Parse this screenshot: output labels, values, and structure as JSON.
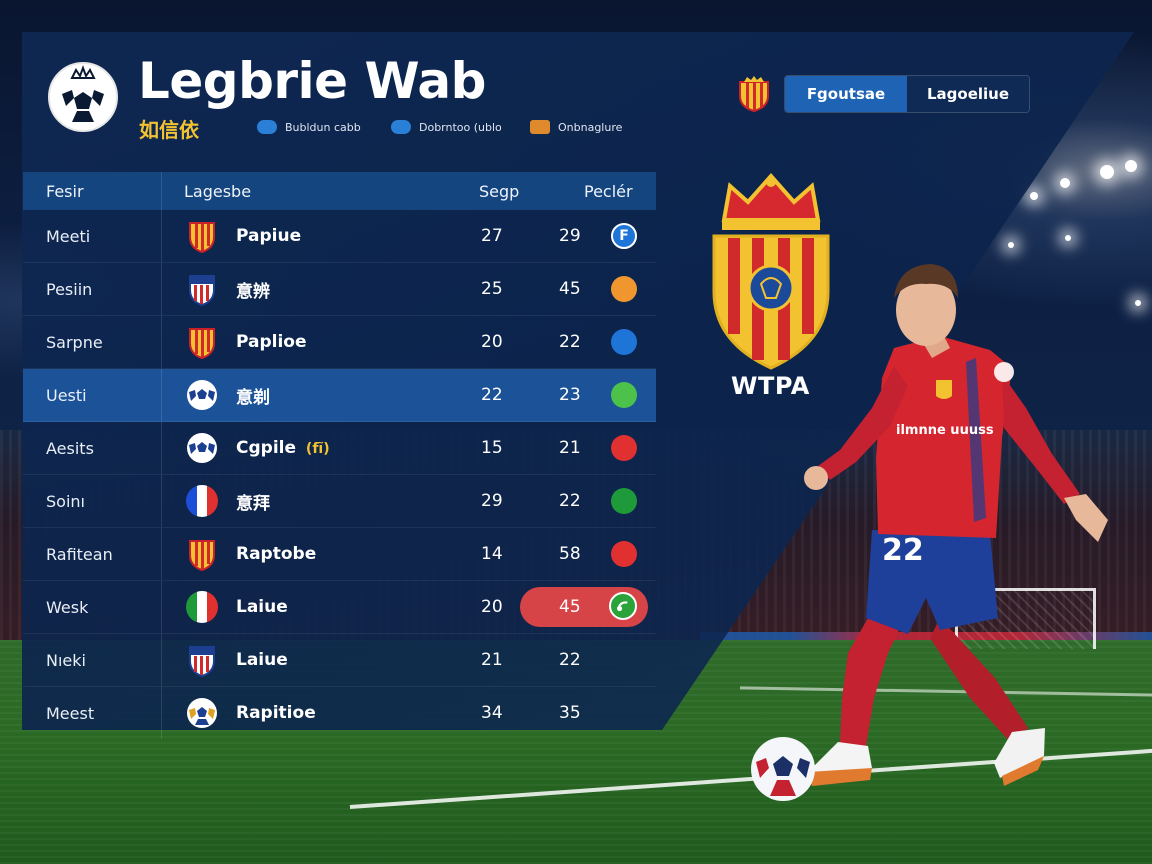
{
  "header": {
    "title": "Legbrie Wab",
    "subtitle": "如信依",
    "legend": [
      {
        "label": "Bubldun cabb",
        "color": "#2a7fd6"
      },
      {
        "label": "Dobrntoo (ublo",
        "color": "#2a7fd6"
      },
      {
        "label": "Onbnaglure",
        "color": "#e08a2e"
      }
    ]
  },
  "tabs": [
    {
      "label": "Fgoutsae",
      "active": true
    },
    {
      "label": "Lagoeliue",
      "active": false
    }
  ],
  "table": {
    "headers": {
      "name": "Fesir",
      "club": "Lagesbe",
      "v1": "Segp",
      "v2": "Peclér"
    },
    "rows": [
      {
        "name": "Meeti",
        "club": "Papiue",
        "v1": "27",
        "v2": "29",
        "status": "blue-f",
        "icon": "spain-crest-icon"
      },
      {
        "name": "Pesiin",
        "club": "意辨",
        "v1": "25",
        "v2": "45",
        "status": "#f0962e",
        "icon": "us-shield-icon"
      },
      {
        "name": "Sarpne",
        "club": "Paplioe",
        "v1": "20",
        "v2": "22",
        "status": "#1f74d8",
        "icon": "spain-crest-icon"
      },
      {
        "name": "Uesti",
        "club": "意剃",
        "v1": "22",
        "v2": "23",
        "status": "#4cc24a",
        "icon": "soccer-ball-icon",
        "highlight": true
      },
      {
        "name": "Aesits",
        "club": "Cgpile",
        "club_suffix": "(fĩ)",
        "v1": "15",
        "v2": "21",
        "status": "#e03030",
        "icon": "soccer-ball-icon"
      },
      {
        "name": "Soinı",
        "club": "意拜",
        "v1": "29",
        "v2": "22",
        "status": "#1f9a3a",
        "icon": "france-flag-icon"
      },
      {
        "name": "Rafitean",
        "club": "Raptobe",
        "v1": "14",
        "v2": "58",
        "status": "#e03030",
        "icon": "spain-crest-icon"
      },
      {
        "name": "Wesk",
        "club": "Laiue",
        "v1": "20",
        "v2": "45",
        "status": "pill",
        "icon": "italy-flag-icon"
      },
      {
        "name": "Nıeki",
        "club": "Laiue",
        "v1": "21",
        "v2": "22",
        "status": "none",
        "icon": "us-shield-icon"
      },
      {
        "name": "Meest",
        "club": "Rapitioe",
        "v1": "34",
        "v2": "35",
        "status": "none",
        "icon": "soccer-ball-gold-icon"
      }
    ]
  },
  "crest": {
    "label": "WTPA"
  },
  "player": {
    "number": "22",
    "sponsor": "ilmnne uuuss"
  },
  "colors": {
    "accent": "#1f63b5",
    "gold": "#f2c230",
    "red": "#d64448"
  }
}
